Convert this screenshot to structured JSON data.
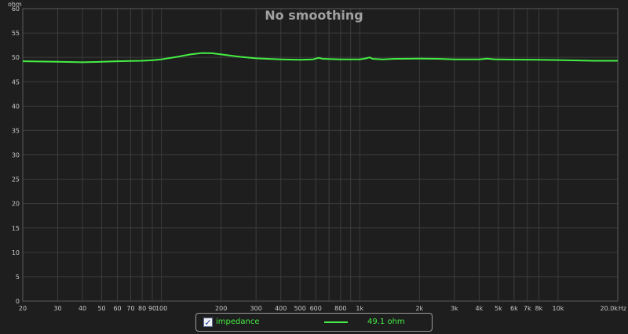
{
  "chart_data": {
    "type": "line",
    "title": "No smoothing",
    "ylabel": "ohm",
    "xlabel": "Hz",
    "x_scale": "log",
    "xlim": [
      20,
      20000
    ],
    "ylim": [
      0,
      60
    ],
    "grid": true,
    "y_ticks": [
      "0",
      "5",
      "10",
      "15",
      "20",
      "25",
      "30",
      "35",
      "40",
      "45",
      "50",
      "55",
      "60"
    ],
    "x_ticks": [
      {
        "v": 20,
        "label": "20"
      },
      {
        "v": 30,
        "label": "30"
      },
      {
        "v": 40,
        "label": "40"
      },
      {
        "v": 50,
        "label": "50"
      },
      {
        "v": 60,
        "label": "60"
      },
      {
        "v": 70,
        "label": "70"
      },
      {
        "v": 80,
        "label": "80"
      },
      {
        "v": 90,
        "label": "90"
      },
      {
        "v": 100,
        "label": "100"
      },
      {
        "v": 200,
        "label": "200"
      },
      {
        "v": 300,
        "label": "300"
      },
      {
        "v": 400,
        "label": "400"
      },
      {
        "v": 500,
        "label": "500"
      },
      {
        "v": 600,
        "label": "600"
      },
      {
        "v": 800,
        "label": "800"
      },
      {
        "v": 1000,
        "label": "1k"
      },
      {
        "v": 2000,
        "label": "2k"
      },
      {
        "v": 3000,
        "label": "3k"
      },
      {
        "v": 4000,
        "label": "4k"
      },
      {
        "v": 5000,
        "label": "5k"
      },
      {
        "v": 6000,
        "label": "6k"
      },
      {
        "v": 7000,
        "label": "7k"
      },
      {
        "v": 8000,
        "label": "8k"
      },
      {
        "v": 10000,
        "label": "10k"
      },
      {
        "v": 20000,
        "label": "20.0k"
      }
    ],
    "minor_grid_x": [
      700,
      900
    ],
    "series": [
      {
        "name": "impedance",
        "color": "#44ee44",
        "points": [
          [
            20,
            49.2
          ],
          [
            30,
            49.1
          ],
          [
            40,
            49.0
          ],
          [
            50,
            49.1
          ],
          [
            60,
            49.2
          ],
          [
            70,
            49.25
          ],
          [
            80,
            49.3
          ],
          [
            90,
            49.4
          ],
          [
            100,
            49.6
          ],
          [
            120,
            50.1
          ],
          [
            140,
            50.6
          ],
          [
            160,
            50.9
          ],
          [
            180,
            50.85
          ],
          [
            200,
            50.6
          ],
          [
            250,
            50.1
          ],
          [
            300,
            49.8
          ],
          [
            400,
            49.6
          ],
          [
            500,
            49.5
          ],
          [
            580,
            49.6
          ],
          [
            620,
            49.9
          ],
          [
            650,
            49.7
          ],
          [
            800,
            49.6
          ],
          [
            1000,
            49.6
          ],
          [
            1080,
            49.8
          ],
          [
            1120,
            50.0
          ],
          [
            1160,
            49.7
          ],
          [
            1300,
            49.6
          ],
          [
            1500,
            49.7
          ],
          [
            2000,
            49.75
          ],
          [
            2500,
            49.7
          ],
          [
            3000,
            49.6
          ],
          [
            4000,
            49.6
          ],
          [
            4400,
            49.75
          ],
          [
            4800,
            49.6
          ],
          [
            6000,
            49.55
          ],
          [
            8000,
            49.5
          ],
          [
            10000,
            49.45
          ],
          [
            15000,
            49.3
          ],
          [
            20000,
            49.3
          ]
        ]
      }
    ]
  },
  "legend": {
    "checked": true,
    "check_glyph": "✓",
    "label": "impedance",
    "value": "49.1 ohm"
  },
  "colors": {
    "background": "#1e1e1e",
    "grid": "#3c3c3c",
    "axis": "#c8c8c8",
    "series": "#44ee44"
  }
}
